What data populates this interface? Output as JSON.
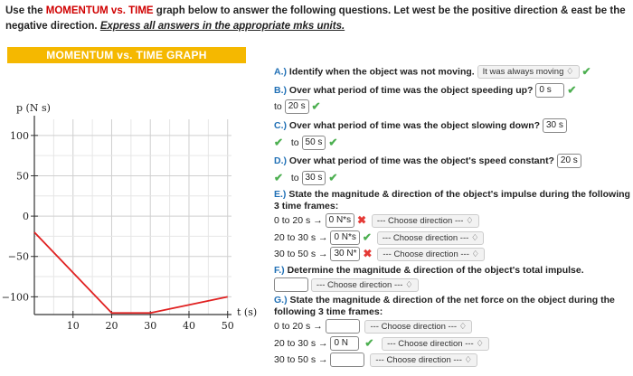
{
  "instructions": {
    "part1": "Use the ",
    "highlight": "MOMENTUM vs. TIME",
    "part2": " graph below to answer the following questions. Let west be the positive direction & east be the negative direction. ",
    "emphasis": "Express all answers in the appropriate mks units."
  },
  "banner": "MOMENTUM vs. TIME GRAPH",
  "chart_data": {
    "type": "line",
    "title": "",
    "xlabel": "t (s)",
    "ylabel": "p (N s)",
    "xlim": [
      0,
      51
    ],
    "ylim": [
      -122,
      120
    ],
    "xticks": [
      10,
      20,
      30,
      40,
      50
    ],
    "yticks": [
      100,
      50,
      0,
      -50,
      -100
    ],
    "xtick_labels": [
      "10",
      "20",
      "30",
      "40",
      "50"
    ],
    "ytick_labels": [
      "100",
      "50",
      "0",
      "−50",
      "−100"
    ],
    "grid": true,
    "series": [
      {
        "x": [
          0,
          20,
          30,
          50
        ],
        "y": [
          -20,
          -120,
          -120,
          -100
        ],
        "color": "#e02020"
      }
    ]
  },
  "questions": {
    "a": {
      "label": "A.)",
      "text": " Identify when the object was not moving.",
      "answer": "It was always moving ♢",
      "mark": "✔"
    },
    "b": {
      "label": "B.)",
      "text": " Over what period of time was the object speeding up?",
      "from": "0 s",
      "to_word": "to",
      "to": "20 s",
      "mark1": "✔",
      "mark2": "✔"
    },
    "c": {
      "label": "C.)",
      "text": " Over what period of time was the object slowing down?",
      "from": "30 s",
      "to_word": "to",
      "to": "50 s",
      "mark1": "✔",
      "mark2": "✔"
    },
    "d": {
      "label": "D.)",
      "text": " Over what period of time was the object's speed constant?",
      "from": "20 s",
      "to_word": "to",
      "to": "30 s",
      "mark1": "✔",
      "mark2": "✔"
    },
    "e": {
      "label": "E.)",
      "text": " State the magnitude & direction of the object's impulse during the following 3 time frames:",
      "rows": [
        {
          "range": "0 to 20 s →",
          "value": "0 N*s",
          "mark": "✖",
          "select": "--- Choose direction --- ♢",
          "bad": true
        },
        {
          "range": "20 to 30 s →",
          "value": "0 N*s",
          "mark": "✔",
          "select": "--- Choose direction --- ♢",
          "bad": false
        },
        {
          "range": "30 to 50 s →",
          "value": "30 N*",
          "mark": "✖",
          "select": "--- Choose direction --- ♢",
          "bad": true
        }
      ]
    },
    "f": {
      "label": "F.)",
      "text": " Determine the magnitude & direction of the object's total impulse.",
      "select": "--- Choose direction --- ♢"
    },
    "g": {
      "label": "G.)",
      "text": " State the magnitude & direction of the net force on the object during the following 3 time frames:",
      "rows": [
        {
          "range": "0 to 20 s →",
          "value": "",
          "select": "--- Choose direction --- ♢"
        },
        {
          "range": "20 to 30 s →",
          "value": "0 N",
          "mark": "✔",
          "select": "--- Choose direction --- ♢"
        },
        {
          "range": "30 to 50 s →",
          "value": "",
          "select": "--- Choose direction --- ♢"
        }
      ]
    }
  }
}
